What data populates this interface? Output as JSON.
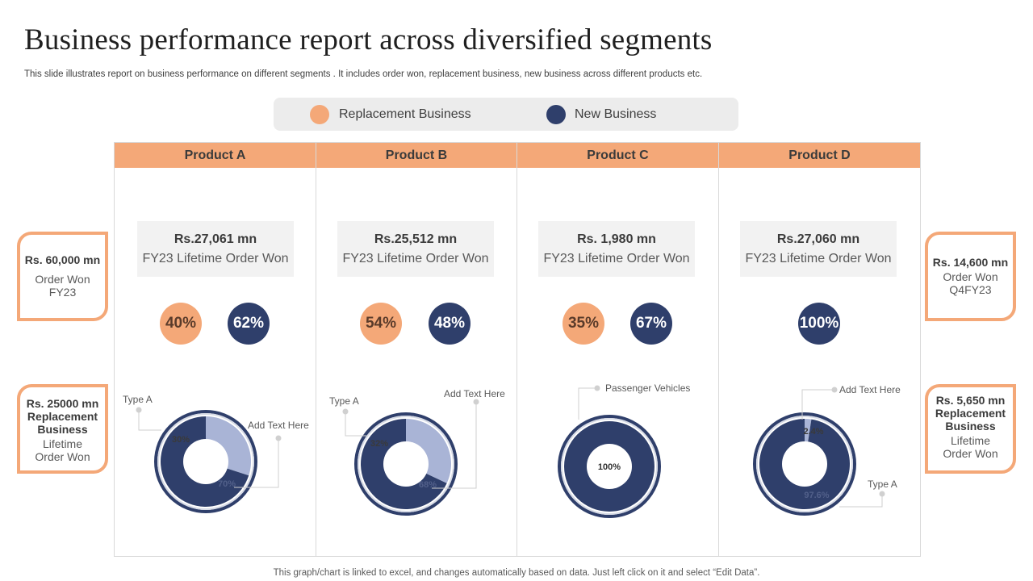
{
  "title": "Business performance report across diversified segments",
  "subtitle": "This slide illustrates report on business performance on different segments . It includes order won, replacement business, new business across different products etc.",
  "legend": [
    {
      "label": "Replacement Business",
      "color": "#f4a878"
    },
    {
      "label": "New Business",
      "color": "#2f3f6b"
    }
  ],
  "products": [
    {
      "name": "Product A",
      "order_amount": "Rs.27,061 mn",
      "order_label": "FY23 Lifetime Order Won",
      "replacement_pct": "40%",
      "new_pct": "62%"
    },
    {
      "name": "Product B",
      "order_amount": "Rs.25,512 mn",
      "order_label": "FY23 Lifetime Order Won",
      "replacement_pct": "54%",
      "new_pct": "48%"
    },
    {
      "name": "Product C",
      "order_amount": "Rs. 1,980 mn",
      "order_label": "FY23 Lifetime Order Won",
      "replacement_pct": "35%",
      "new_pct": "67%"
    },
    {
      "name": "Product D",
      "order_amount": "Rs.27,060 mn",
      "order_label": "FY23 Lifetime Order Won",
      "replacement_pct": "",
      "new_pct": "100%"
    }
  ],
  "side_cards": {
    "left_top": {
      "amount": "Rs. 60,000 mn",
      "label": "Order Won FY23"
    },
    "left_bottom": {
      "amount": "Rs. 25000 mn Replacement Business",
      "label": "Lifetime Order Won"
    },
    "right_top": {
      "amount": "Rs. 14,600 mn",
      "label": "Order Won Q4FY23"
    },
    "right_bottom": {
      "amount": "Rs. 5,650 mn Replacement Business",
      "label": "Lifetime Order Won"
    }
  },
  "chart_data": [
    {
      "type": "pie",
      "title": "Product A",
      "labels": [
        "Type A",
        "Add Text Here"
      ],
      "values": [
        30,
        70
      ],
      "value_labels": [
        "30%",
        "70%"
      ],
      "colors": [
        "#a9b4d6",
        "#2f3f6b"
      ]
    },
    {
      "type": "pie",
      "title": "Product B",
      "labels": [
        "Type A",
        "Add Text Here"
      ],
      "values": [
        32,
        68
      ],
      "value_labels": [
        "32%",
        "68%"
      ],
      "colors": [
        "#a9b4d6",
        "#2f3f6b"
      ]
    },
    {
      "type": "pie",
      "title": "Product C",
      "labels": [
        "Passenger Vehicles"
      ],
      "values": [
        100
      ],
      "value_labels": [
        "100%"
      ],
      "colors": [
        "#2f3f6b"
      ]
    },
    {
      "type": "pie",
      "title": "Product D",
      "labels": [
        "Add Text Here",
        "Type A"
      ],
      "values": [
        2.4,
        97.6
      ],
      "value_labels": [
        "2.4%",
        "97.6%"
      ],
      "colors": [
        "#a9b4d6",
        "#2f3f6b"
      ]
    }
  ],
  "footer": "This graph/chart is linked to excel, and changes automatically based on data. Just left click on it and select “Edit Data”."
}
